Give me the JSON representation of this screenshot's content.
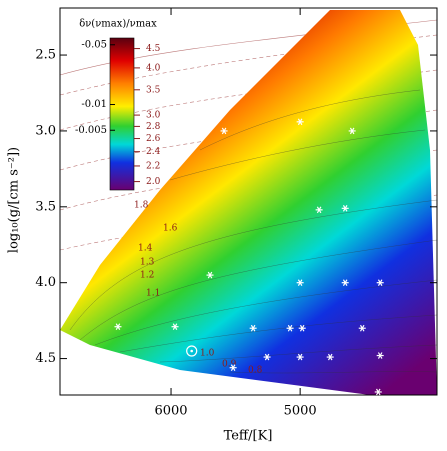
{
  "chart_data": {
    "type": "scatter",
    "xlabel": "Teff/[K]",
    "ylabel": "log₁₀(g/[cm s⁻²])",
    "xlim": [
      6860,
      3940
    ],
    "ylim": [
      2.19,
      4.74
    ],
    "xticks": [
      6000,
      5000
    ],
    "yticks": [
      2.5,
      {
        "value": 3,
        "label": "3.0"
      },
      3.5,
      {
        "value": 4,
        "label": "4.0"
      },
      4.5
    ],
    "x": [
      5589,
      5000,
      4597,
      4853,
      4651,
      5698,
      5000,
      4651,
      4380,
      6411,
      5969,
      5364,
      5078,
      4984,
      4519,
      5256,
      5000,
      4767,
      4380,
      5519,
      4395
    ],
    "values": [
      3.0,
      2.94,
      3.0,
      3.52,
      3.51,
      3.95,
      4.0,
      4.0,
      4.0,
      4.29,
      4.29,
      4.3,
      4.3,
      4.3,
      4.3,
      4.49,
      4.49,
      4.49,
      4.48,
      4.56,
      4.72
    ],
    "color": "#ffffff",
    "highlight": {
      "x": 5840,
      "value": 4.45
    },
    "colorbar": {
      "label": "δν(νmax)/νmax",
      "lim": [
        -0.06,
        -0.001
      ],
      "log": true,
      "ticks": [
        -0.05,
        -0.01,
        -0.005
      ],
      "y2lim": [
        4.8,
        1.9
      ],
      "y2log": true,
      "y2ticks": [
        4.5,
        {
          "value": 4,
          "label": "4.0"
        },
        3.5,
        {
          "value": 3,
          "label": "3.0"
        },
        2.8,
        2.6,
        2.4,
        2.2,
        {
          "value": 2,
          "label": "2.0"
        }
      ]
    },
    "contour_labels": [
      "1.8",
      "1.6",
      "1.4",
      "1.3",
      "1.2",
      "1.1",
      "1.0",
      "0.9",
      "0.8"
    ]
  }
}
